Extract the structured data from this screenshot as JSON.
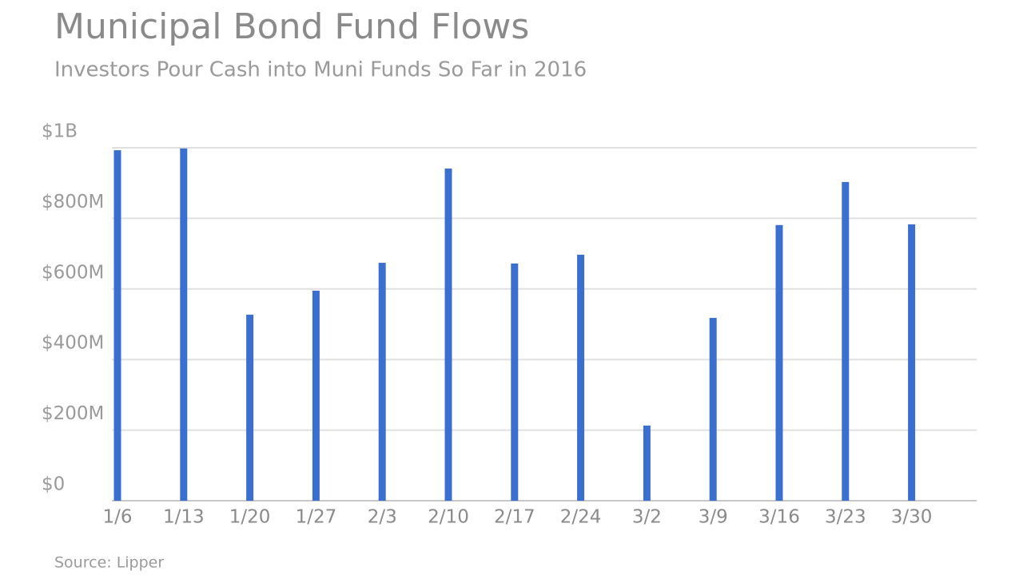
{
  "chart_data": {
    "type": "bar",
    "title": "Municipal Bond Fund Flows",
    "subtitle": "Investors Pour Cash into Muni Funds So Far in 2016",
    "source": "Source: Lipper",
    "categories": [
      "1/6",
      "1/13",
      "1/20",
      "1/27",
      "2/3",
      "2/10",
      "2/17",
      "2/24",
      "3/2",
      "3/9",
      "3/16",
      "3/23",
      "3/30"
    ],
    "values": [
      993,
      998,
      527,
      595,
      674,
      941,
      672,
      697,
      213,
      518,
      781,
      903,
      783
    ],
    "color": "#3a6fd0",
    "ylim": [
      0,
      1000
    ],
    "yticks": [
      {
        "value": 0,
        "label": "$0"
      },
      {
        "value": 200,
        "label": "$200M"
      },
      {
        "value": 400,
        "label": "$400M"
      },
      {
        "value": 600,
        "label": "$600M"
      },
      {
        "value": 800,
        "label": "$800M"
      },
      {
        "value": 1000,
        "label": "$1B"
      }
    ],
    "grid": true
  }
}
